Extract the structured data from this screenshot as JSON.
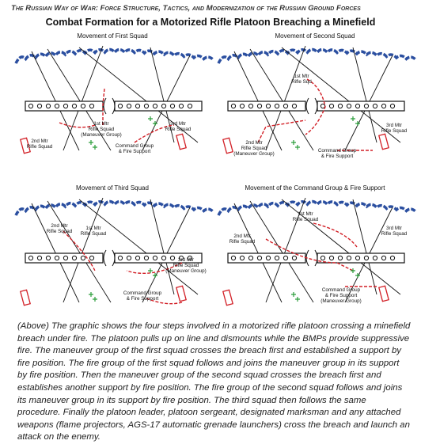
{
  "header": {
    "title": "The Russian Way of War: Force Structure, Tactics, and Modernization of the Russian Ground Forces",
    "subtitle": "Combat Formation for a Motorized Rifle Platoon Breaching a Minefield"
  },
  "panels": [
    {
      "title": "Movement of First Squad",
      "labels": [
        [
          "1st Mtr",
          "Rifle Squad",
          "(Maneuver Group)"
        ],
        [
          "2nd Mtr",
          "Rifle Squad"
        ],
        [
          "3rd Mtr",
          "Rifle Squad"
        ],
        [
          "Command Group",
          "& Fire Support"
        ]
      ]
    },
    {
      "title": "Movement of Second Squad",
      "labels": [
        [
          "1st Mtr",
          "Rifle Sqd"
        ],
        [
          "3rd Mtr",
          "Rifle Squad"
        ],
        [
          "2nd Mtr",
          "Rifle Squad",
          "(Maneuver Group)"
        ],
        [
          "Command Group",
          "& Fire Support"
        ]
      ]
    },
    {
      "title": "Movement of Third Squad",
      "labels": [
        [
          "2nd Mtr",
          "Rifle Squad"
        ],
        [
          "1st Mtr",
          "Rifle Squad"
        ],
        [
          "3rd Mtr",
          "Rifle Squad",
          "(Maneuver Group)"
        ],
        [
          "Command Group",
          "& Fire Support"
        ]
      ]
    },
    {
      "title": "Movement of the Command Group & Fire Support",
      "labels": [
        [
          "1st Mtr",
          "Rifle Squad"
        ],
        [
          "2nd Mtr",
          "Rifle Squad"
        ],
        [
          "3rd Mtr",
          "Rifle Squad"
        ],
        [
          "Command Group",
          "& Fire Support",
          "(Maneuver Group)"
        ]
      ]
    }
  ],
  "caption": "(Above) The graphic shows the four steps involved in a motorized rifle platoon crossing a minefield breach under fire. The platoon pulls up on line and dismounts while the BMPs provide suppressive fire. The maneuver group of the first squad crosses the breach first and established a support by fire position. The fire group of the first squad follows and joins the maneuver group in its support by fire position. Then the maneuver group of the second squad crosses the breach first and establishes another support by fire position. The fire group of the second squad follows and joins its maneuver group in its support by fire position. The third squad then follows the same procedure. Finally the platoon leader, platoon sergeant, designated marksman and any attached weapons (flame projectors, AGS-17 automatic grenade launchers) cross the breach and launch an attack on the enemy."
}
